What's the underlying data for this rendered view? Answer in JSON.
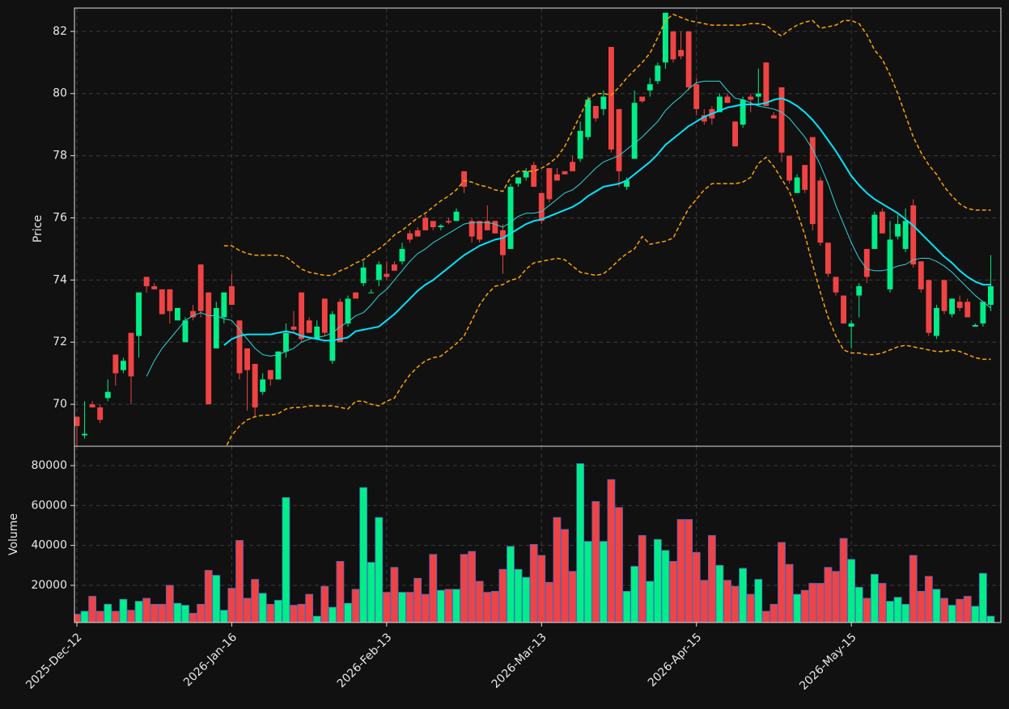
{
  "chart_data": {
    "type": "candlestick",
    "x": [
      "2025-Dec-12",
      null,
      null,
      null,
      null,
      null,
      null,
      null,
      null,
      null,
      null,
      null,
      null,
      null,
      null,
      null,
      null,
      null,
      null,
      null,
      "2026-Jan-16",
      null,
      null,
      null,
      null,
      null,
      null,
      null,
      null,
      null,
      null,
      null,
      null,
      null,
      null,
      null,
      null,
      null,
      null,
      null,
      "2026-Feb-13",
      null,
      null,
      null,
      null,
      null,
      null,
      null,
      null,
      null,
      null,
      null,
      null,
      null,
      null,
      null,
      null,
      null,
      null,
      null,
      "2026-Mar-13",
      null,
      null,
      null,
      null,
      null,
      null,
      null,
      null,
      null,
      null,
      null,
      null,
      null,
      null,
      null,
      null,
      null,
      null,
      null,
      "2026-Apr-15",
      null,
      null,
      null,
      null,
      null,
      null,
      null,
      null,
      null,
      null,
      null,
      null,
      null,
      null,
      null,
      null,
      null,
      null,
      null,
      "2026-May-15",
      null,
      null,
      null,
      null,
      null,
      null,
      null,
      null,
      null,
      null,
      null,
      null,
      null,
      null,
      null,
      null,
      null,
      null
    ],
    "open": [
      69.6,
      69.0,
      70.0,
      69.9,
      70.2,
      71.6,
      71.1,
      72.3,
      72.2,
      74.1,
      73.8,
      73.7,
      73.7,
      72.7,
      72.0,
      73.0,
      74.5,
      73.6,
      71.8,
      72.8,
      73.8,
      72.7,
      71.8,
      71.3,
      70.4,
      71.1,
      70.8,
      71.7,
      72.5,
      73.6,
      72.7,
      72.1,
      73.4,
      71.4,
      73.3,
      72.6,
      73.6,
      73.9,
      73.6,
      74.0,
      74.2,
      74.5,
      74.6,
      75.5,
      75.6,
      76.0,
      75.9,
      75.7,
      75.9,
      75.9,
      77.5,
      75.9,
      75.9,
      75.9,
      75.9,
      75.6,
      75.0,
      77.1,
      77.3,
      77.7,
      76.8,
      77.6,
      77.4,
      77.5,
      77.8,
      77.9,
      78.6,
      79.6,
      79.5,
      81.5,
      79.5,
      77.0,
      77.9,
      79.9,
      80.1,
      80.4,
      81.0,
      82.0,
      81.4,
      82.0,
      80.3,
      79.3,
      79.5,
      79.4,
      79.9,
      79.1,
      79.0,
      79.9,
      79.9,
      81.0,
      79.3,
      80.2,
      78.0,
      76.8,
      77.7,
      78.6,
      77.2,
      75.2,
      74.1,
      73.5,
      72.5,
      73.5,
      75.0,
      75.0,
      76.2,
      73.7,
      75.4,
      75.0,
      76.4,
      74.6,
      74.0,
      72.2,
      74.0,
      72.9,
      73.3,
      73.3,
      72.5,
      72.6,
      73.2
    ],
    "high": [
      69.6,
      70.1,
      70.1,
      70.0,
      70.8,
      71.6,
      71.5,
      72.3,
      73.6,
      74.1,
      73.9,
      73.7,
      73.7,
      73.1,
      72.8,
      73.2,
      74.5,
      73.6,
      73.3,
      73.6,
      74.2,
      72.7,
      71.8,
      71.3,
      71.0,
      71.1,
      71.7,
      72.6,
      73.0,
      73.6,
      72.8,
      72.7,
      73.4,
      73.0,
      73.4,
      73.5,
      73.6,
      74.6,
      73.7,
      74.6,
      74.6,
      74.6,
      75.2,
      75.6,
      75.7,
      76.1,
      75.9,
      75.8,
      76.0,
      76.3,
      77.5,
      76.0,
      75.9,
      76.4,
      75.9,
      75.8,
      77.1,
      77.3,
      77.6,
      77.8,
      76.8,
      77.6,
      77.6,
      77.5,
      78.0,
      79.1,
      79.9,
      79.6,
      80.1,
      81.5,
      79.5,
      77.3,
      80.1,
      79.9,
      80.5,
      81.0,
      82.6,
      82.0,
      82.0,
      82.0,
      80.5,
      79.5,
      79.6,
      80.0,
      80.0,
      79.1,
      79.9,
      80.0,
      80.8,
      81.0,
      79.4,
      80.2,
      78.0,
      77.4,
      77.7,
      78.6,
      77.3,
      75.2,
      74.1,
      73.5,
      72.7,
      73.9,
      75.0,
      76.2,
      76.3,
      75.9,
      76.1,
      76.3,
      76.6,
      74.6,
      74.0,
      73.2,
      74.0,
      73.4,
      73.5,
      73.4,
      72.6,
      73.3,
      74.8
    ],
    "low": [
      68.6,
      68.9,
      69.9,
      69.4,
      70.1,
      70.6,
      71.0,
      70.0,
      71.5,
      73.6,
      73.7,
      72.9,
      72.6,
      72.7,
      72.0,
      72.7,
      72.8,
      70.0,
      71.8,
      72.6,
      73.2,
      70.8,
      69.8,
      69.6,
      70.3,
      70.6,
      70.8,
      71.5,
      72.3,
      72.0,
      72.3,
      72.1,
      72.2,
      71.3,
      72.0,
      72.5,
      73.4,
      73.8,
      73.6,
      73.8,
      74.0,
      74.3,
      74.5,
      75.2,
      75.4,
      75.6,
      75.6,
      75.6,
      75.8,
      75.9,
      76.8,
      75.2,
      75.2,
      75.6,
      75.5,
      74.2,
      75.0,
      77.0,
      77.2,
      77.0,
      75.8,
      76.5,
      77.2,
      77.4,
      77.5,
      77.8,
      78.5,
      79.1,
      79.3,
      78.1,
      77.0,
      76.9,
      77.9,
      79.7,
      79.9,
      80.3,
      80.8,
      81.0,
      81.1,
      80.1,
      79.3,
      79.0,
      79.0,
      79.4,
      79.7,
      78.3,
      78.9,
      79.4,
      79.6,
      79.6,
      79.2,
      77.8,
      77.1,
      76.8,
      76.8,
      75.6,
      75.1,
      74.1,
      73.5,
      72.6,
      71.8,
      72.8,
      73.9,
      75.0,
      75.5,
      73.6,
      75.3,
      74.9,
      74.4,
      73.6,
      72.2,
      72.1,
      72.9,
      72.8,
      73.0,
      72.8,
      72.5,
      72.5,
      73.0
    ],
    "close": [
      69.3,
      69.05,
      69.9,
      69.5,
      70.4,
      71.0,
      71.4,
      70.9,
      73.6,
      73.8,
      73.7,
      72.9,
      73.0,
      73.1,
      72.7,
      72.8,
      73.0,
      70.0,
      73.1,
      73.6,
      73.2,
      71.0,
      71.1,
      69.9,
      70.8,
      70.8,
      71.7,
      72.3,
      72.4,
      72.1,
      72.3,
      72.5,
      72.3,
      72.9,
      72.0,
      73.4,
      73.4,
      74.4,
      73.6,
      74.5,
      74.1,
      74.3,
      75.0,
      75.3,
      75.4,
      75.6,
      75.7,
      75.75,
      75.85,
      76.2,
      77.0,
      75.4,
      75.3,
      75.6,
      75.5,
      74.8,
      77.0,
      77.3,
      77.5,
      77.0,
      75.9,
      76.6,
      77.2,
      77.4,
      77.5,
      78.8,
      79.8,
      79.2,
      79.9,
      78.2,
      77.5,
      77.2,
      79.7,
      79.75,
      80.3,
      80.9,
      82.6,
      81.1,
      81.2,
      80.2,
      79.5,
      79.1,
      79.2,
      79.9,
      79.7,
      78.3,
      79.8,
      79.8,
      80.0,
      79.6,
      79.2,
      78.1,
      77.2,
      77.3,
      76.9,
      75.8,
      75.2,
      74.2,
      73.6,
      72.6,
      72.6,
      73.8,
      74.1,
      76.1,
      75.5,
      75.3,
      75.8,
      75.9,
      74.5,
      73.7,
      72.3,
      73.1,
      73.0,
      73.4,
      73.1,
      72.8,
      72.55,
      73.3,
      73.8
    ],
    "up_color": "#00ee88",
    "down_color": "#f04343",
    "ylabel": "Price",
    "ylim": [
      68.65,
      82.75
    ],
    "yticks": [
      70,
      72,
      74,
      76,
      78,
      80,
      82
    ],
    "grid": true,
    "lines": [
      {
        "color": "#2fd6d6",
        "linewidth": 1,
        "dashed": false,
        "values": [
          null,
          null,
          null,
          null,
          null,
          null,
          null,
          null,
          null,
          70.9,
          71.4,
          71.8,
          72.1,
          72.4,
          72.7,
          72.85,
          72.95,
          72.85,
          72.85,
          72.75,
          72.7,
          72.4,
          72.1,
          71.8,
          71.6,
          71.55,
          71.6,
          71.7,
          71.8,
          72.0,
          72.1,
          72.15,
          72.2,
          72.3,
          72.5,
          72.65,
          72.85,
          72.95,
          73.2,
          73.5,
          73.7,
          74.0,
          74.3,
          74.6,
          74.85,
          75.0,
          75.2,
          75.35,
          75.5,
          75.65,
          75.8,
          75.85,
          75.85,
          75.85,
          75.8,
          75.7,
          75.85,
          76.05,
          76.15,
          76.15,
          76.2,
          76.4,
          76.6,
          76.8,
          76.9,
          77.1,
          77.35,
          77.6,
          77.8,
          77.9,
          78.0,
          78.2,
          78.4,
          78.6,
          78.85,
          79.1,
          79.45,
          79.7,
          79.9,
          80.15,
          80.35,
          80.4,
          80.4,
          80.4,
          80.1,
          79.85,
          79.8,
          79.7,
          79.6,
          79.55,
          79.5,
          79.4,
          79.2,
          78.9,
          78.6,
          78.2,
          77.7,
          77.1,
          76.4,
          75.8,
          75.2,
          74.7,
          74.35,
          74.3,
          74.3,
          74.35,
          74.45,
          74.5,
          74.65,
          74.7,
          74.7,
          74.6,
          74.45,
          74.25,
          74.0,
          73.75,
          73.5,
          73.3,
          73.1
        ]
      },
      {
        "color": "#00e5ff",
        "linewidth": 2,
        "dashed": false,
        "values": [
          null,
          null,
          null,
          null,
          null,
          null,
          null,
          null,
          null,
          null,
          null,
          null,
          null,
          null,
          null,
          null,
          null,
          null,
          null,
          71.9,
          72.1,
          72.2,
          72.25,
          72.25,
          72.25,
          72.25,
          72.3,
          72.35,
          72.3,
          72.2,
          72.15,
          72.1,
          72.05,
          72.05,
          72.1,
          72.15,
          72.35,
          72.4,
          72.45,
          72.5,
          72.7,
          72.9,
          73.15,
          73.4,
          73.65,
          73.85,
          74.0,
          74.2,
          74.4,
          74.6,
          74.8,
          74.95,
          75.1,
          75.2,
          75.3,
          75.35,
          75.5,
          75.65,
          75.8,
          75.9,
          75.95,
          76.05,
          76.15,
          76.25,
          76.35,
          76.5,
          76.7,
          76.85,
          77.0,
          77.05,
          77.1,
          77.2,
          77.4,
          77.6,
          77.8,
          78.05,
          78.35,
          78.55,
          78.75,
          78.95,
          79.1,
          79.25,
          79.35,
          79.45,
          79.55,
          79.6,
          79.65,
          79.65,
          79.65,
          79.7,
          79.8,
          79.85,
          79.75,
          79.6,
          79.4,
          79.15,
          78.85,
          78.5,
          78.15,
          77.75,
          77.35,
          77.05,
          76.8,
          76.6,
          76.45,
          76.3,
          76.15,
          75.95,
          75.75,
          75.5,
          75.25,
          75.0,
          74.75,
          74.55,
          74.3,
          74.1,
          73.95,
          73.85,
          73.85
        ]
      },
      {
        "color": "#ffa500",
        "linewidth": 1.5,
        "dashed": true,
        "values": [
          null,
          null,
          null,
          null,
          null,
          null,
          null,
          null,
          null,
          null,
          null,
          null,
          null,
          null,
          null,
          null,
          null,
          null,
          null,
          75.1,
          75.1,
          74.95,
          74.85,
          74.8,
          74.8,
          74.8,
          74.8,
          74.75,
          74.55,
          74.35,
          74.25,
          74.2,
          74.15,
          74.15,
          74.3,
          74.4,
          74.55,
          74.65,
          74.85,
          75.0,
          75.2,
          75.45,
          75.6,
          75.8,
          76.0,
          76.15,
          76.35,
          76.55,
          76.7,
          76.9,
          77.2,
          77.15,
          77.05,
          77.0,
          76.9,
          76.85,
          77.3,
          77.5,
          77.5,
          77.5,
          77.6,
          77.75,
          77.95,
          78.3,
          78.8,
          79.3,
          79.8,
          80.0,
          80.0,
          79.95,
          80.2,
          80.5,
          80.75,
          81.0,
          81.3,
          81.8,
          82.35,
          82.55,
          82.45,
          82.35,
          82.3,
          82.25,
          82.2,
          82.2,
          82.2,
          82.2,
          82.2,
          82.25,
          82.25,
          82.2,
          82.0,
          81.85,
          82.05,
          82.2,
          82.3,
          82.35,
          82.1,
          82.15,
          82.2,
          82.35,
          82.35,
          82.25,
          81.9,
          81.4,
          81.1,
          80.6,
          80.0,
          79.3,
          78.6,
          78.1,
          77.7,
          77.4,
          77.0,
          76.7,
          76.45,
          76.3,
          76.25,
          76.25,
          76.25
        ]
      },
      {
        "color": "#ffa500",
        "linewidth": 1.5,
        "dashed": true,
        "values": [
          null,
          null,
          null,
          null,
          null,
          null,
          null,
          null,
          null,
          null,
          null,
          null,
          null,
          null,
          null,
          null,
          null,
          null,
          null,
          68.5,
          69.0,
          69.3,
          69.5,
          69.6,
          69.65,
          69.65,
          69.7,
          69.85,
          69.9,
          69.9,
          69.95,
          69.95,
          69.95,
          69.95,
          69.9,
          69.85,
          70.1,
          70.1,
          70.0,
          69.95,
          70.1,
          70.2,
          70.6,
          70.95,
          71.2,
          71.4,
          71.5,
          71.55,
          71.75,
          71.95,
          72.2,
          72.7,
          73.2,
          73.55,
          73.8,
          73.85,
          74.0,
          74.05,
          74.35,
          74.55,
          74.6,
          74.65,
          74.7,
          74.65,
          74.45,
          74.25,
          74.2,
          74.15,
          74.2,
          74.4,
          74.65,
          74.85,
          75.0,
          75.4,
          75.15,
          75.2,
          75.25,
          75.35,
          75.85,
          76.3,
          76.6,
          76.9,
          77.1,
          77.1,
          77.1,
          77.1,
          77.15,
          77.3,
          77.75,
          77.95,
          77.65,
          77.25,
          76.85,
          76.2,
          75.45,
          74.5,
          73.6,
          72.8,
          72.2,
          71.75,
          71.65,
          71.65,
          71.6,
          71.6,
          71.65,
          71.75,
          71.85,
          71.9,
          71.85,
          71.8,
          71.75,
          71.7,
          71.7,
          71.75,
          71.7,
          71.6,
          71.5,
          71.45,
          71.45
        ]
      }
    ],
    "volume": {
      "ylabel": "Volume",
      "edge_color": "#4a68c8",
      "ylim": [
        1350,
        89700
      ],
      "yticks": [
        20000,
        40000,
        60000,
        80000
      ],
      "values": [
        5500,
        7000,
        14500,
        7000,
        10500,
        7000,
        13000,
        7500,
        12000,
        13500,
        10500,
        10500,
        20000,
        11000,
        10000,
        6000,
        10500,
        27500,
        25000,
        7500,
        18500,
        42500,
        13500,
        23000,
        16000,
        10500,
        12500,
        64000,
        10000,
        10500,
        15500,
        4500,
        19500,
        9000,
        32000,
        11000,
        18000,
        69000,
        31500,
        54000,
        16500,
        29000,
        16500,
        16500,
        23500,
        15500,
        35500,
        17500,
        18000,
        18000,
        35500,
        37000,
        22000,
        16500,
        17000,
        28000,
        39500,
        28000,
        24000,
        40500,
        35000,
        21500,
        54000,
        48000,
        27000,
        81000,
        42000,
        62000,
        42000,
        73000,
        59000,
        17000,
        29500,
        45000,
        22000,
        43000,
        37500,
        32000,
        53000,
        53000,
        36500,
        22500,
        45000,
        30000,
        22500,
        19500,
        28500,
        15500,
        23000,
        7000,
        10500,
        41500,
        30500,
        15500,
        17500,
        21000,
        21000,
        29000,
        27000,
        43500,
        33000,
        19000,
        13500,
        25500,
        21000,
        12000,
        14000,
        10500,
        35000,
        17000,
        24500,
        18000,
        13500,
        10000,
        13000,
        14500,
        9500,
        26000,
        4500
      ]
    }
  }
}
